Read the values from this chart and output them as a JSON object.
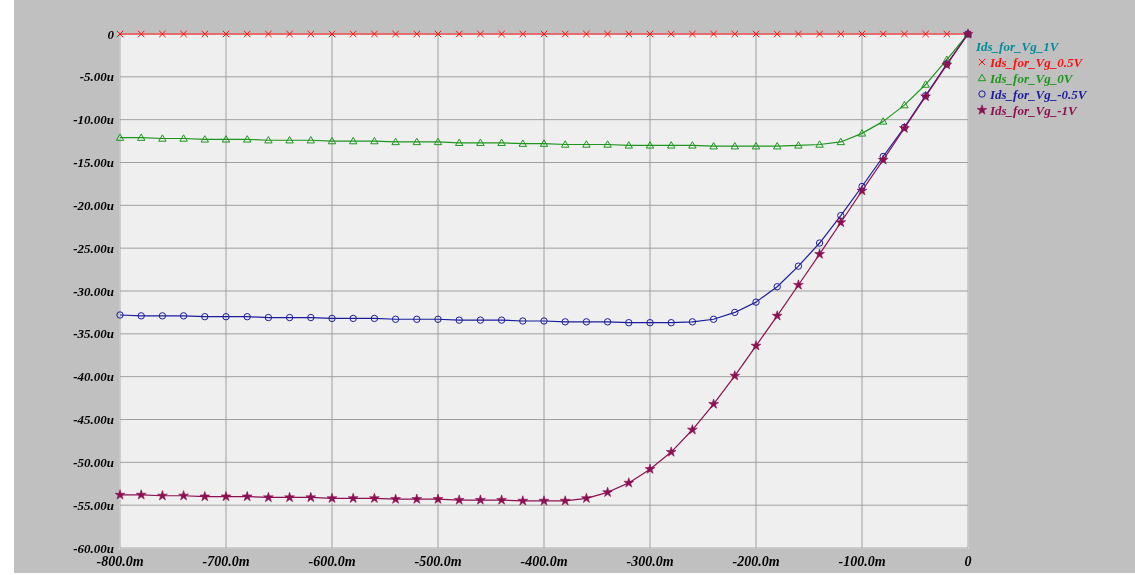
{
  "chart_data": {
    "type": "line",
    "x": [
      -800,
      -780,
      -760,
      -740,
      -720,
      -700,
      -680,
      -660,
      -640,
      -620,
      -600,
      -580,
      -560,
      -540,
      -520,
      -500,
      -480,
      -460,
      -440,
      -420,
      -400,
      -380,
      -360,
      -340,
      -320,
      -300,
      -280,
      -260,
      -240,
      -220,
      -200,
      -180,
      -160,
      -140,
      -120,
      -100,
      -80,
      -60,
      -40,
      -20,
      0
    ],
    "series": [
      {
        "name": "Ids_for_Vg_1V",
        "color": "#008c9a",
        "marker": "none",
        "values": [
          null,
          null,
          null,
          null,
          null,
          null,
          null,
          null,
          null,
          null,
          null,
          null,
          null,
          null,
          null,
          null,
          null,
          null,
          null,
          null,
          null,
          null,
          null,
          null,
          null,
          null,
          null,
          null,
          null,
          null,
          null,
          null,
          null,
          null,
          null,
          null,
          null,
          null,
          null,
          null,
          null
        ]
      },
      {
        "name": "Ids_for_Vg_0.5V",
        "color": "#ff1010",
        "marker": "cross",
        "values": [
          0,
          0,
          0,
          0,
          0,
          0,
          0,
          0,
          0,
          0,
          0,
          0,
          0,
          0,
          0,
          0,
          0,
          0,
          0,
          0,
          0,
          0,
          0,
          0,
          0,
          0,
          0,
          0,
          0,
          0,
          0,
          0,
          0,
          0,
          0,
          0,
          0,
          0,
          0,
          0,
          0
        ]
      },
      {
        "name": "Ids_for_Vg_0V",
        "color": "#1e961e",
        "marker": "triangle",
        "values": [
          -12.1,
          -12.1,
          -12.2,
          -12.2,
          -12.3,
          -12.3,
          -12.3,
          -12.4,
          -12.4,
          -12.4,
          -12.5,
          -12.5,
          -12.5,
          -12.6,
          -12.6,
          -12.6,
          -12.7,
          -12.7,
          -12.7,
          -12.8,
          -12.8,
          -12.9,
          -12.9,
          -12.9,
          -13.0,
          -13.0,
          -13.0,
          -13.0,
          -13.1,
          -13.1,
          -13.1,
          -13.1,
          -13.0,
          -12.9,
          -12.6,
          -11.6,
          -10.2,
          -8.3,
          -5.9,
          -3.0,
          0
        ]
      },
      {
        "name": "Ids_for_Vg_-0.5V",
        "color": "#1c1c9c",
        "marker": "circle",
        "values": [
          -32.8,
          -32.9,
          -32.9,
          -32.9,
          -33.0,
          -33.0,
          -33.0,
          -33.1,
          -33.1,
          -33.1,
          -33.2,
          -33.2,
          -33.2,
          -33.3,
          -33.3,
          -33.3,
          -33.4,
          -33.4,
          -33.4,
          -33.5,
          -33.5,
          -33.6,
          -33.6,
          -33.6,
          -33.7,
          -33.7,
          -33.7,
          -33.6,
          -33.3,
          -32.5,
          -31.3,
          -29.5,
          -27.1,
          -24.4,
          -21.2,
          -17.8,
          -14.3,
          -10.9,
          -7.2,
          -3.5,
          0
        ]
      },
      {
        "name": "Ids_for_Vg_-1V",
        "color": "#8c1050",
        "marker": "star",
        "values": [
          -53.8,
          -53.8,
          -53.9,
          -53.9,
          -54.0,
          -54.0,
          -54.0,
          -54.1,
          -54.1,
          -54.1,
          -54.2,
          -54.2,
          -54.2,
          -54.3,
          -54.3,
          -54.3,
          -54.4,
          -54.4,
          -54.4,
          -54.5,
          -54.5,
          -54.5,
          -54.2,
          -53.5,
          -52.4,
          -50.8,
          -48.8,
          -46.2,
          -43.2,
          -39.9,
          -36.4,
          -32.9,
          -29.3,
          -25.7,
          -22.0,
          -18.3,
          -14.7,
          -11.0,
          -7.3,
          -3.6,
          0
        ]
      }
    ],
    "xlim": [
      -800,
      0
    ],
    "xticks": [
      {
        "value": -800,
        "label": "-800.0m"
      },
      {
        "value": -700,
        "label": "-700.0m"
      },
      {
        "value": -600,
        "label": "-600.0m"
      },
      {
        "value": -500,
        "label": "-500.0m"
      },
      {
        "value": -400,
        "label": "-400.0m"
      },
      {
        "value": -300,
        "label": "-300.0m"
      },
      {
        "value": -200,
        "label": "-200.0m"
      },
      {
        "value": -100,
        "label": "-100.0m"
      },
      0
    ],
    "ylim": [
      -60,
      0
    ],
    "yticks": [
      0,
      {
        "value": -5,
        "label": "-5.00u"
      },
      {
        "value": -10,
        "label": "-10.00u"
      },
      {
        "value": -15,
        "label": "-15.00u"
      },
      {
        "value": -20,
        "label": "-20.00u"
      },
      {
        "value": -25,
        "label": "-25.00u"
      },
      {
        "value": -30,
        "label": "-30.00u"
      },
      {
        "value": -35,
        "label": "-35.00u"
      },
      {
        "value": -40,
        "label": "-40.00u"
      },
      {
        "value": -45,
        "label": "-45.00u"
      },
      {
        "value": -50,
        "label": "-50.00u"
      },
      {
        "value": -55,
        "label": "-55.00u"
      },
      {
        "value": -60,
        "label": "-60.00u"
      }
    ],
    "grid": true,
    "legend": "top right",
    "line_style": "solid"
  }
}
